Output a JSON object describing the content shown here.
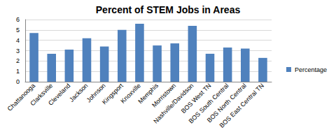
{
  "chart_data": {
    "type": "bar",
    "title": "Percent of STEM Jobs in Areas",
    "categories": [
      "Chattanooga",
      "Clarksville",
      "Cleveland",
      "Jackson",
      "Johnson",
      "Kingsport",
      "Knoxville",
      "Memphis",
      "Morristown",
      "Nashville/Davidson",
      "BOS West TN",
      "BOS South Central",
      "BOS North Central",
      "BOS East Central TN"
    ],
    "series": [
      {
        "name": "Percentage",
        "color": "#4f81bd",
        "values": [
          4.7,
          2.7,
          3.1,
          4.2,
          3.4,
          5.0,
          5.6,
          3.5,
          3.7,
          5.4,
          2.7,
          3.3,
          3.2,
          2.3
        ]
      }
    ],
    "ylim": [
      0,
      6
    ],
    "yticks": [
      0,
      1,
      2,
      3,
      4,
      5,
      6
    ],
    "grid": true,
    "legend": "right"
  }
}
